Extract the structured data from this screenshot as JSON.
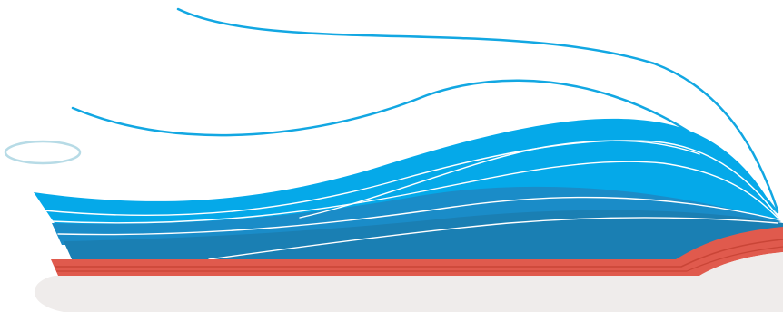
{
  "illustration": {
    "subject": "open-book-with-flowing-pages",
    "colors": {
      "page_light_blue": "#05a9e9",
      "page_mid_blue": "#1a8cc8",
      "page_dark_blue": "#1a7fb3",
      "page_lines": "#ffffff",
      "stroke_blue": "#12a7e2",
      "cover_red": "#e05a4d",
      "cover_red_dark": "#c94537",
      "shadow_ground": "#efeceb",
      "halo_outline": "#b7dbe6",
      "background": "#ffffff"
    }
  }
}
